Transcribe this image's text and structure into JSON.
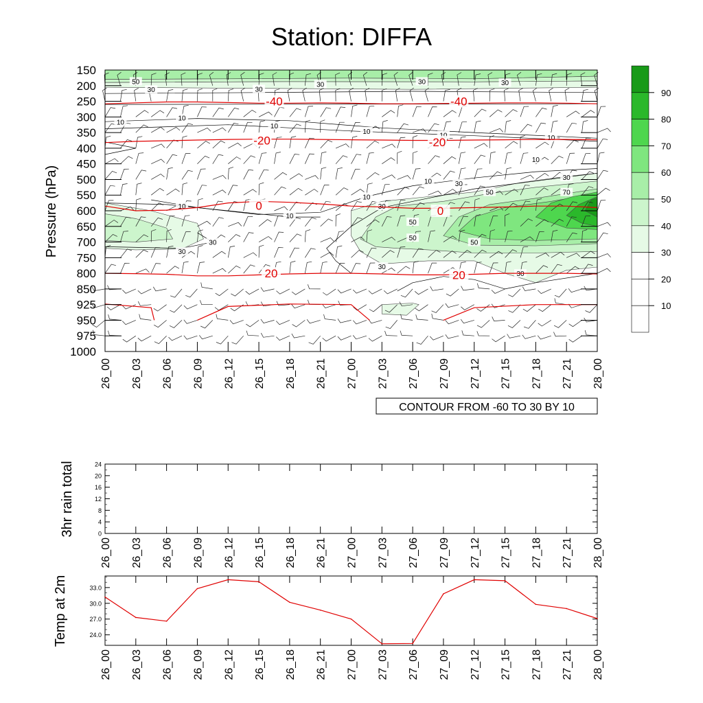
{
  "title": "Station: DIFFA",
  "colors": {
    "temp_contour": "#e00000",
    "rh_contour": "#000000",
    "temp2m_line": "#e00000",
    "shade_levels": [
      "#ffffff",
      "#ffffff",
      "#ffffff",
      "#e6fae6",
      "#ccf5cc",
      "#a8eea8",
      "#7fe67f",
      "#4ed64e",
      "#2bb82b",
      "#189a18"
    ]
  },
  "chart_data": [
    {
      "type": "heatmap",
      "name": "time-pressure cross section",
      "ylabel": "Pressure (hPa)",
      "ylim": [
        1000,
        150
      ],
      "pressure_levels": [
        150,
        200,
        250,
        300,
        350,
        400,
        450,
        500,
        550,
        600,
        650,
        700,
        750,
        800,
        850,
        925,
        950,
        975,
        1000
      ],
      "time_ticks": [
        "26_00",
        "26_03",
        "26_06",
        "26_09",
        "26_12",
        "26_15",
        "26_18",
        "26_21",
        "27_00",
        "27_03",
        "27_06",
        "27_09",
        "27_12",
        "27_15",
        "27_18",
        "27_21",
        "28_00"
      ],
      "colorbar_levels": [
        "10",
        "20",
        "30",
        "40",
        "50",
        "60",
        "70",
        "80",
        "90"
      ],
      "contour_note": "CONTOUR FROM -60 TO 30 BY 10",
      "temperature_contours": [
        {
          "label": "-40",
          "pressure": [
            258,
            255,
            252,
            252,
            254,
            256,
            256,
            255,
            256,
            258,
            258,
            257,
            256,
            255,
            255,
            256,
            258
          ]
        },
        {
          "label": "-20",
          "pressure": [
            382,
            378,
            376,
            374,
            372,
            371,
            371,
            372,
            373,
            374,
            375,
            375,
            374,
            373,
            372,
            372,
            373
          ]
        },
        {
          "label": "0",
          "pressure": [
            585,
            600,
            598,
            590,
            575,
            570,
            573,
            578,
            585,
            588,
            592,
            592,
            590,
            588,
            585,
            585,
            590
          ]
        },
        {
          "label": "20",
          "pressure": [
            800,
            801,
            803,
            808,
            808,
            805,
            802,
            800,
            800,
            802,
            805,
            805,
            803,
            800,
            800,
            800,
            802
          ]
        }
      ],
      "temperature_contour_labels": [
        {
          "text": "-40",
          "t": 5.5,
          "p": 250
        },
        {
          "text": "-40",
          "t": 11.5,
          "p": 250
        },
        {
          "text": "-20",
          "t": 5.1,
          "p": 375
        },
        {
          "text": "-20",
          "t": 10.8,
          "p": 380
        },
        {
          "text": "0",
          "t": 5.0,
          "p": 583
        },
        {
          "text": "0",
          "t": 10.9,
          "p": 600
        },
        {
          "text": "20",
          "t": 5.4,
          "p": 800
        },
        {
          "text": "20",
          "t": 11.5,
          "p": 805
        }
      ],
      "rh_contour_labels": [
        {
          "text": "50",
          "t": 1.0,
          "p": 186
        },
        {
          "text": "30",
          "t": 1.5,
          "p": 212
        },
        {
          "text": "30",
          "t": 5.0,
          "p": 210
        },
        {
          "text": "30",
          "t": 7.0,
          "p": 195
        },
        {
          "text": "30",
          "t": 10.3,
          "p": 186
        },
        {
          "text": "30",
          "t": 13.0,
          "p": 190
        },
        {
          "text": "10",
          "t": 0.5,
          "p": 316
        },
        {
          "text": "10",
          "t": 2.5,
          "p": 303
        },
        {
          "text": "10",
          "t": 5.5,
          "p": 328
        },
        {
          "text": "10",
          "t": 8.5,
          "p": 345
        },
        {
          "text": "10",
          "t": 11.0,
          "p": 357
        },
        {
          "text": "10",
          "t": 14.5,
          "p": 365
        },
        {
          "text": "10",
          "t": 14.0,
          "p": 435
        },
        {
          "text": "10",
          "t": 10.5,
          "p": 505
        },
        {
          "text": "30",
          "t": 11.5,
          "p": 512
        },
        {
          "text": "30",
          "t": 15.0,
          "p": 492
        },
        {
          "text": "50",
          "t": 12.5,
          "p": 540
        },
        {
          "text": "70",
          "t": 15.0,
          "p": 540
        },
        {
          "text": "10",
          "t": 8.5,
          "p": 555
        },
        {
          "text": "30",
          "t": 9.0,
          "p": 585
        },
        {
          "text": "10",
          "t": 2.5,
          "p": 585
        },
        {
          "text": "10",
          "t": 6.0,
          "p": 615
        },
        {
          "text": "50",
          "t": 10.0,
          "p": 635
        },
        {
          "text": "50",
          "t": 10.0,
          "p": 686
        },
        {
          "text": "50",
          "t": 12.0,
          "p": 700
        },
        {
          "text": "30",
          "t": 3.5,
          "p": 700
        },
        {
          "text": "30",
          "t": 2.5,
          "p": 730
        },
        {
          "text": "30",
          "t": 9.0,
          "p": 778
        },
        {
          "text": "30",
          "t": 13.5,
          "p": 800
        }
      ]
    },
    {
      "type": "bar",
      "name": "3hr rain",
      "ylabel": "3hr rain total",
      "ylim": [
        0,
        24
      ],
      "yticks": [
        0,
        4,
        8,
        12,
        16,
        20,
        24
      ],
      "categories": [
        "26_00",
        "26_03",
        "26_06",
        "26_09",
        "26_12",
        "26_15",
        "26_18",
        "26_21",
        "27_00",
        "27_03",
        "27_06",
        "27_09",
        "27_12",
        "27_15",
        "27_18",
        "27_21",
        "28_00"
      ],
      "values": [
        0,
        0,
        0,
        0,
        0,
        0,
        0,
        0,
        0,
        0,
        0,
        0,
        0,
        0,
        0,
        0,
        0
      ]
    },
    {
      "type": "line",
      "name": "2m temperature",
      "ylabel": "Temp at 2m",
      "ylim": [
        22.0,
        35.2
      ],
      "yticks": [
        "24.0",
        "27.0",
        "30.0",
        "33.0"
      ],
      "ytick_values": [
        24,
        27,
        30,
        33
      ],
      "categories": [
        "26_00",
        "26_03",
        "26_06",
        "26_09",
        "26_12",
        "26_15",
        "26_18",
        "26_21",
        "27_00",
        "27_03",
        "27_06",
        "27_09",
        "27_12",
        "27_15",
        "27_18",
        "27_21",
        "28_00"
      ],
      "values": [
        31.2,
        27.3,
        26.6,
        32.8,
        34.5,
        34.1,
        30.2,
        28.7,
        27.0,
        22.3,
        22.35,
        31.8,
        34.5,
        34.3,
        29.8,
        29.0,
        27.1
      ]
    }
  ]
}
